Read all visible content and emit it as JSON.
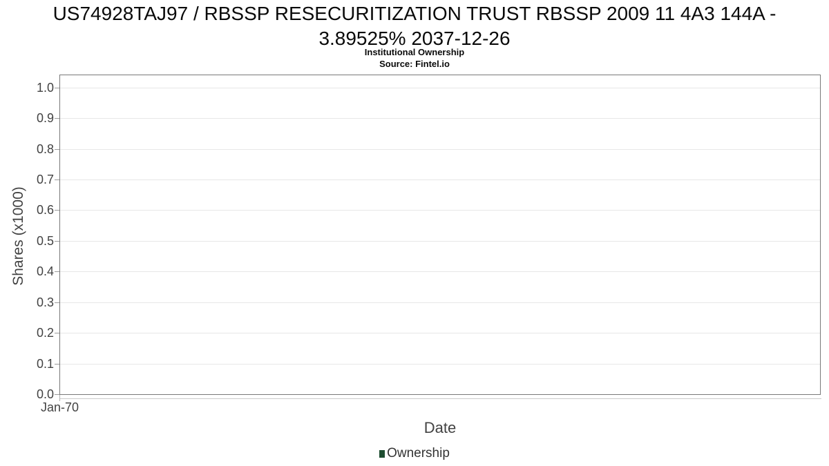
{
  "chart_data": {
    "type": "line",
    "title": "US74928TAJ97 / RBSSP RESECURITIZATION TRUST RBSSP 2009 11 4A3 144A - 3.89525% 2037-12-26",
    "title_lines": [
      "US74928TAJ97 / RBSSP RESECURITIZATION TRUST RBSSP 2009 11 4A3 144A -",
      "3.89525% 2037-12-26"
    ],
    "subtitle": "Institutional Ownership",
    "source": "Source: Fintel.io",
    "xlabel": "Date",
    "ylabel": "Shares (x1000)",
    "x_tick_labels": [
      "Jan-70"
    ],
    "y_tick_labels": [
      "0.0",
      "0.1",
      "0.2",
      "0.3",
      "0.4",
      "0.5",
      "0.6",
      "0.7",
      "0.8",
      "0.9",
      "1.0"
    ],
    "ylim": [
      0,
      1.04
    ],
    "grid": "horizontal",
    "legend_position": "bottom",
    "legend": [
      {
        "label": "Ownership",
        "color": "#1e4d31"
      }
    ],
    "series": [
      {
        "name": "Ownership",
        "color": "#1e4d31",
        "x": [],
        "values": []
      }
    ],
    "colors": {
      "plot_border": "#787878",
      "gridline": "#e7e7e7",
      "axis_text": "#424242",
      "title_text": "#0a0a0a"
    }
  }
}
